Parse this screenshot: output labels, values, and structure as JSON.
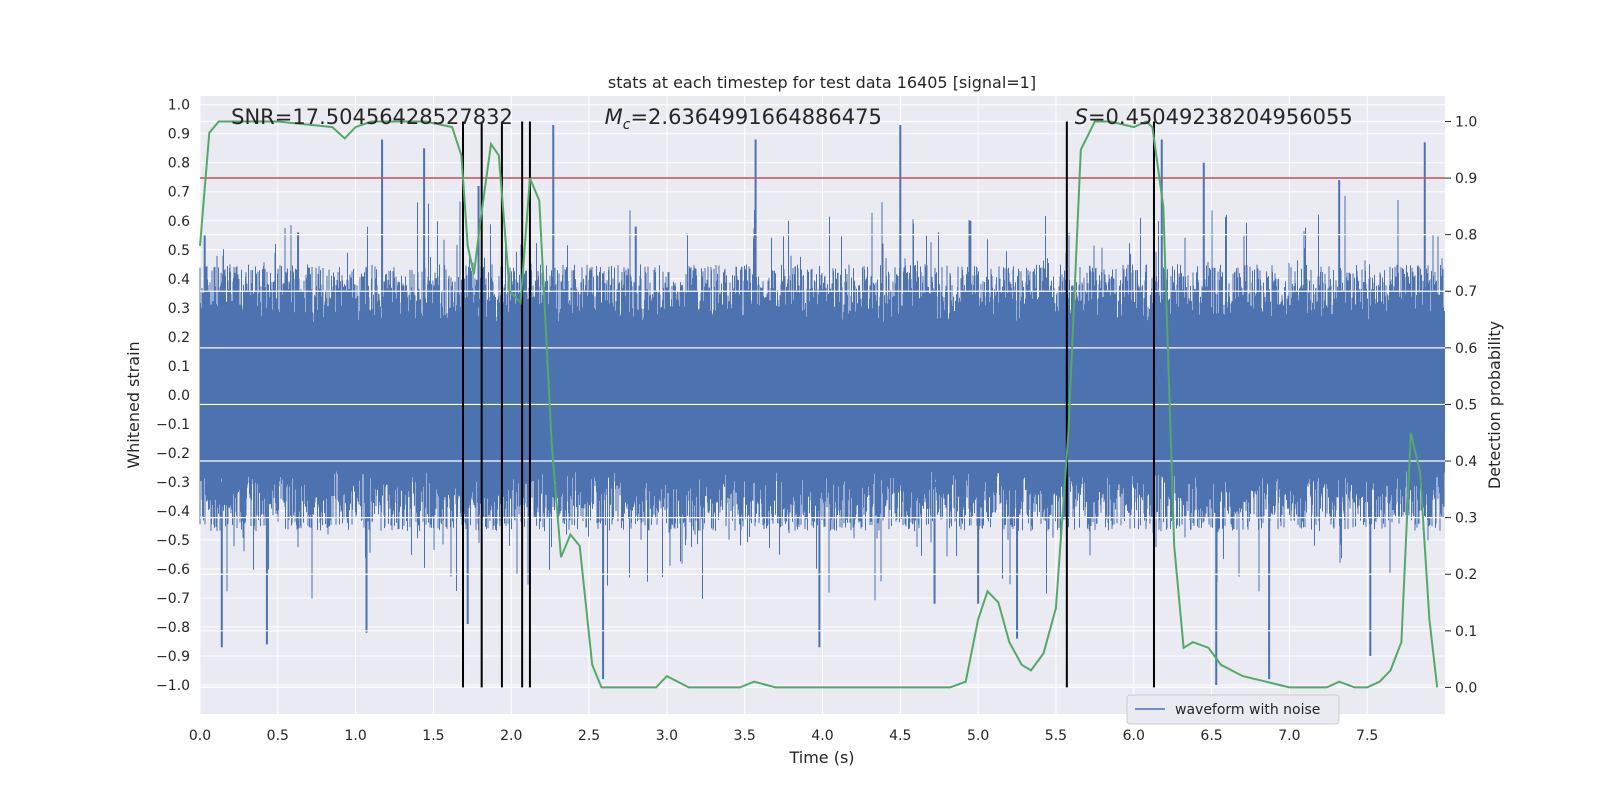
{
  "chart_data": {
    "type": "line",
    "title": "stats at each timestep for test data 16405 [signal=1]",
    "xlabel": "Time (s)",
    "ylabel": "Whitened strain",
    "ylabel_right": "Detection probability",
    "xlim": [
      0,
      8
    ],
    "ylim": [
      -1.1,
      1.03
    ],
    "ylim_right": [
      -0.047,
      1.045
    ],
    "x_ticks": [
      0.0,
      0.5,
      1.0,
      1.5,
      2.0,
      2.5,
      3.0,
      3.5,
      4.0,
      4.5,
      5.0,
      5.5,
      6.0,
      6.5,
      7.0,
      7.5
    ],
    "x_tick_labels": [
      "0.0",
      "0.5",
      "1.0",
      "1.5",
      "2.0",
      "2.5",
      "3.0",
      "3.5",
      "4.0",
      "4.5",
      "5.0",
      "5.5",
      "6.0",
      "6.5",
      "7.0",
      "7.5"
    ],
    "y_ticks": [
      1.0,
      0.9,
      0.8,
      0.7,
      0.6,
      0.5,
      0.4,
      0.3,
      0.2,
      0.1,
      0.0,
      -0.1,
      -0.2,
      -0.3,
      -0.4,
      -0.5,
      -0.6,
      -0.7,
      -0.8,
      -0.9,
      -1.0
    ],
    "y_tick_labels": [
      "1.0",
      "0.9",
      "0.8",
      "0.7",
      "0.6",
      "0.5",
      "0.4",
      "0.3",
      "0.2",
      "0.1",
      "0.0",
      "−0.1",
      "−0.2",
      "−0.3",
      "−0.4",
      "−0.5",
      "−0.6",
      "−0.7",
      "−0.8",
      "−0.9",
      "−1.0"
    ],
    "y_right_ticks": [
      1.0,
      0.9,
      0.8,
      0.7,
      0.6,
      0.5,
      0.4,
      0.3,
      0.2,
      0.1,
      0.0
    ],
    "y_right_tick_labels": [
      "1.0",
      "0.9",
      "0.8",
      "0.7",
      "0.6",
      "0.5",
      "0.4",
      "0.3",
      "0.2",
      "0.1",
      "0.0"
    ],
    "grid": true,
    "legend_position": "lower-right",
    "series": [
      {
        "name": "waveform with noise",
        "axis": "left",
        "color": "#4c72b0",
        "style": "dense-noise",
        "envelope_upper": 0.45,
        "envelope_lower": -0.47,
        "peaks_upper": [
          [
            0.03,
            0.55
          ],
          [
            0.63,
            0.56
          ],
          [
            1.17,
            0.88
          ],
          [
            1.44,
            0.85
          ],
          [
            1.79,
            0.72
          ],
          [
            2.27,
            0.93
          ],
          [
            2.8,
            0.58
          ],
          [
            3.57,
            0.88
          ],
          [
            4.5,
            0.93
          ],
          [
            4.95,
            0.6
          ],
          [
            6.18,
            0.88
          ],
          [
            6.45,
            0.8
          ],
          [
            7.32,
            0.74
          ],
          [
            7.87,
            0.87
          ]
        ],
        "peaks_lower": [
          [
            0.14,
            -0.87
          ],
          [
            0.43,
            -0.86
          ],
          [
            1.07,
            -0.82
          ],
          [
            1.72,
            -0.79
          ],
          [
            2.59,
            -0.98
          ],
          [
            3.98,
            -0.87
          ],
          [
            4.72,
            -0.72
          ],
          [
            5.0,
            -0.72
          ],
          [
            5.25,
            -0.84
          ],
          [
            6.53,
            -1.0
          ],
          [
            6.87,
            -0.98
          ],
          [
            7.52,
            -0.9
          ]
        ]
      },
      {
        "name": "",
        "axis": "right",
        "color": "#55a868",
        "x": [
          0.0,
          0.06,
          0.12,
          0.2,
          0.5,
          0.85,
          0.93,
          1.0,
          1.1,
          1.3,
          1.45,
          1.62,
          1.68,
          1.72,
          1.76,
          1.8,
          1.87,
          1.92,
          1.99,
          2.06,
          2.12,
          2.18,
          2.26,
          2.32,
          2.38,
          2.44,
          2.52,
          2.58,
          2.8,
          2.93,
          3.0,
          3.14,
          3.3,
          3.38,
          3.47,
          3.56,
          3.7,
          3.9,
          4.1,
          4.3,
          4.55,
          4.7,
          4.82,
          4.92,
          5.0,
          5.06,
          5.13,
          5.2,
          5.28,
          5.34,
          5.42,
          5.5,
          5.58,
          5.66,
          5.75,
          5.85,
          6.0,
          6.08,
          6.12,
          6.19,
          6.26,
          6.32,
          6.38,
          6.48,
          6.56,
          6.7,
          6.85,
          7.0,
          7.14,
          7.24,
          7.32,
          7.42,
          7.5,
          7.58,
          7.65,
          7.72,
          7.78,
          7.84,
          7.9,
          7.95
        ],
        "y": [
          0.78,
          0.98,
          1.0,
          1.0,
          1.0,
          0.99,
          0.97,
          0.99,
          1.0,
          1.0,
          1.0,
          0.99,
          0.94,
          0.78,
          0.73,
          0.82,
          0.96,
          0.94,
          0.7,
          0.68,
          0.9,
          0.86,
          0.43,
          0.23,
          0.27,
          0.25,
          0.04,
          0.0,
          0.0,
          0.0,
          0.02,
          0.0,
          0.0,
          0.0,
          0.0,
          0.01,
          0.0,
          0.0,
          0.0,
          0.0,
          0.0,
          0.0,
          0.0,
          0.01,
          0.12,
          0.17,
          0.15,
          0.08,
          0.04,
          0.03,
          0.06,
          0.14,
          0.45,
          0.95,
          1.0,
          1.0,
          0.99,
          1.0,
          0.99,
          0.85,
          0.25,
          0.07,
          0.08,
          0.07,
          0.04,
          0.02,
          0.01,
          0.0,
          0.0,
          0.0,
          0.01,
          0.0,
          0.0,
          0.01,
          0.03,
          0.08,
          0.45,
          0.38,
          0.12,
          0.0
        ]
      }
    ],
    "threshold": {
      "value": 0.9,
      "axis": "right",
      "color": "#c44e52"
    },
    "vlines": [
      1.69,
      1.81,
      1.94,
      2.07,
      2.12,
      5.57,
      6.13
    ],
    "vline_range_right": [
      0.0,
      1.0
    ],
    "annotations": [
      {
        "text": "SNR=17.50456428527832",
        "x": 0.2
      },
      {
        "prefix_italic": "M",
        "prefix_sub": "c",
        "text": "=2.6364991664886475",
        "x": 2.6
      },
      {
        "prefix_italic": "S",
        "text": "=0.45049238204956055",
        "x": 5.62
      }
    ]
  }
}
